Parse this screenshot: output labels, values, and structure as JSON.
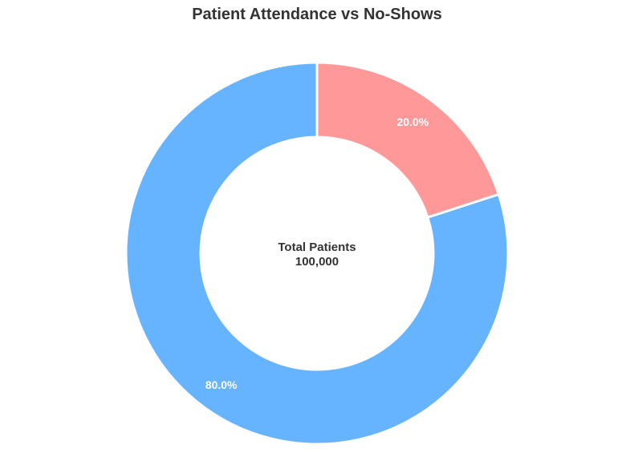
{
  "chart_data": {
    "type": "pie",
    "title": "Patient Attendance vs No-Shows",
    "style": "donut",
    "slices": [
      {
        "percent_label": "20.0%",
        "value": 20.0,
        "color": "#ff9999"
      },
      {
        "percent_label": "80.0%",
        "value": 80.0,
        "color": "#66b3ff"
      }
    ],
    "center_label": {
      "line1": "Total Patients",
      "line2": "100,000"
    },
    "start_angle": "12 o'clock",
    "direction": "clockwise",
    "legend": "none"
  }
}
